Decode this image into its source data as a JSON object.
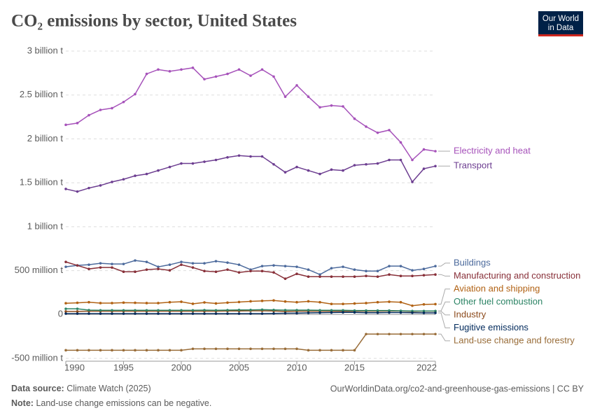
{
  "chart_data": {
    "type": "line",
    "title": "CO₂ emissions by sector, United States",
    "logo": [
      "Our World",
      "in Data"
    ],
    "source_label": "Data source:",
    "source": "Climate Watch (2025)",
    "url": "OurWorldinData.org/co2-and-greenhouse-gas-emissions | CC BY",
    "note_label": "Note:",
    "note": "Land-use change emissions can be negative.",
    "x": [
      1990,
      1991,
      1992,
      1993,
      1994,
      1995,
      1996,
      1997,
      1998,
      1999,
      2000,
      2001,
      2002,
      2003,
      2004,
      2005,
      2006,
      2007,
      2008,
      2009,
      2010,
      2011,
      2012,
      2013,
      2014,
      2015,
      2016,
      2017,
      2018,
      2019,
      2020,
      2021,
      2022
    ],
    "xlim": [
      1990,
      2022
    ],
    "xticks": [
      1990,
      1995,
      2000,
      2005,
      2010,
      2015,
      2022
    ],
    "ylim": [
      -500000000,
      3000000000
    ],
    "yticks": [
      {
        "value": -500000000,
        "label": "-500 million t"
      },
      {
        "value": 0,
        "label": "0"
      },
      {
        "value": 500000000,
        "label": "500 million t"
      },
      {
        "value": 1000000000,
        "label": "1 billion t"
      },
      {
        "value": 1500000000,
        "label": "1.5 billion t"
      },
      {
        "value": 2000000000,
        "label": "2 billion t"
      },
      {
        "value": 2500000000,
        "label": "2.5 billion t"
      },
      {
        "value": 3000000000,
        "label": "3 billion t"
      }
    ],
    "grid": true,
    "series": [
      {
        "name": "Electricity and heat",
        "color": "#a652ba",
        "values": [
          2160000000.0,
          2180000000.0,
          2270000000.0,
          2330000000.0,
          2350000000.0,
          2420000000.0,
          2510000000.0,
          2740000000.0,
          2790000000.0,
          2770000000.0,
          2790000000.0,
          2810000000.0,
          2680000000.0,
          2710000000.0,
          2740000000.0,
          2790000000.0,
          2720000000.0,
          2790000000.0,
          2710000000.0,
          2480000000.0,
          2610000000.0,
          2480000000.0,
          2360000000.0,
          2380000000.0,
          2370000000.0,
          2230000000.0,
          2140000000.0,
          2070000000.0,
          2100000000.0,
          1960000000.0,
          1760000000.0,
          1880000000.0,
          1860000000.0
        ]
      },
      {
        "name": "Transport",
        "color": "#6d3e91",
        "values": [
          1430000000.0,
          1400000000.0,
          1440000000.0,
          1470000000.0,
          1510000000.0,
          1540000000.0,
          1580000000.0,
          1600000000.0,
          1640000000.0,
          1680000000.0,
          1720000000.0,
          1720000000.0,
          1740000000.0,
          1760000000.0,
          1790000000.0,
          1810000000.0,
          1800000000.0,
          1800000000.0,
          1710000000.0,
          1620000000.0,
          1680000000.0,
          1640000000.0,
          1600000000.0,
          1650000000.0,
          1640000000.0,
          1700000000.0,
          1710000000.0,
          1720000000.0,
          1760000000.0,
          1760000000.0,
          1510000000.0,
          1660000000.0,
          1690000000.0
        ]
      },
      {
        "name": "Buildings",
        "color": "#4c6a9c",
        "values": [
          543000000.0,
          559000000.0,
          567000000.0,
          583000000.0,
          575000000.0,
          575000000.0,
          615000000.0,
          599000000.0,
          543000000.0,
          567000000.0,
          599000000.0,
          583000000.0,
          583000000.0,
          607000000.0,
          591000000.0,
          567000000.0,
          511000000.0,
          551000000.0,
          559000000.0,
          551000000.0,
          543000000.0,
          511000000.0,
          455000000.0,
          527000000.0,
          543000000.0,
          511000000.0,
          495000000.0,
          495000000.0,
          551000000.0,
          551000000.0,
          503000000.0,
          519000000.0,
          551000000.0
        ]
      },
      {
        "name": "Manufacturing and construction",
        "color": "#883039",
        "values": [
          599000000.0,
          559000000.0,
          519000000.0,
          535000000.0,
          535000000.0,
          487000000.0,
          487000000.0,
          511000000.0,
          519000000.0,
          503000000.0,
          567000000.0,
          535000000.0,
          495000000.0,
          487000000.0,
          511000000.0,
          479000000.0,
          495000000.0,
          495000000.0,
          479000000.0,
          407000000.0,
          463000000.0,
          431000000.0,
          431000000.0,
          431000000.0,
          431000000.0,
          431000000.0,
          439000000.0,
          431000000.0,
          455000000.0,
          439000000.0,
          439000000.0,
          447000000.0,
          455000000.0
        ]
      },
      {
        "name": "Aviation and shipping",
        "color": "#b16214",
        "values": [
          128000000.0,
          133000000.0,
          140000000.0,
          130000000.0,
          130000000.0,
          135000000.0,
          133000000.0,
          130000000.0,
          130000000.0,
          140000000.0,
          145000000.0,
          122000000.0,
          137000000.0,
          126000000.0,
          135000000.0,
          142000000.0,
          150000000.0,
          155000000.0,
          160000000.0,
          148000000.0,
          140000000.0,
          150000000.0,
          140000000.0,
          120000000.0,
          120000000.0,
          125000000.0,
          130000000.0,
          140000000.0,
          145000000.0,
          140000000.0,
          100000000.0,
          115000000.0,
          118000000.0
        ]
      },
      {
        "name": "Industry",
        "color": "#8c4a1c",
        "values": [
          35000000.0,
          35000000.0,
          38000000.0,
          38000000.0,
          38000000.0,
          38000000.0,
          38000000.0,
          38000000.0,
          38000000.0,
          38000000.0,
          38000000.0,
          38000000.0,
          38000000.0,
          38000000.0,
          40000000.0,
          40000000.0,
          42000000.0,
          42000000.0,
          40000000.0,
          35000000.0,
          38000000.0,
          38000000.0,
          38000000.0,
          38000000.0,
          38000000.0,
          38000000.0,
          38000000.0,
          38000000.0,
          40000000.0,
          40000000.0,
          35000000.0,
          38000000.0,
          38000000.0
        ]
      },
      {
        "name": "Other fuel combustion",
        "color": "#2c8465",
        "values": [
          65000000.0,
          65000000.0,
          50000000.0,
          48000000.0,
          48000000.0,
          48000000.0,
          48000000.0,
          48000000.0,
          48000000.0,
          48000000.0,
          48000000.0,
          48000000.0,
          50000000.0,
          48000000.0,
          50000000.0,
          52000000.0,
          52000000.0,
          55000000.0,
          52000000.0,
          50000000.0,
          50000000.0,
          50000000.0,
          48000000.0,
          48000000.0,
          48000000.0,
          45000000.0,
          45000000.0,
          45000000.0,
          45000000.0,
          42000000.0,
          40000000.0,
          40000000.0,
          40000000.0
        ]
      },
      {
        "name": "Fugitive emissions",
        "color": "#00295b",
        "values": [
          10000000.0,
          10000000.0,
          10000000.0,
          10000000.0,
          10000000.0,
          10000000.0,
          10000000.0,
          10000000.0,
          10000000.0,
          10000000.0,
          10000000.0,
          10000000.0,
          10000000.0,
          10000000.0,
          10000000.0,
          10000000.0,
          10000000.0,
          10000000.0,
          12000000.0,
          14000000.0,
          15000000.0,
          18000000.0,
          20000000.0,
          22000000.0,
          24000000.0,
          24000000.0,
          20000000.0,
          20000000.0,
          22000000.0,
          22000000.0,
          20000000.0,
          18000000.0,
          18000000.0
        ]
      },
      {
        "name": "Land-use change and forestry",
        "color": "#996d39",
        "values": [
          -407000000.0,
          -407000000.0,
          -407000000.0,
          -407000000.0,
          -407000000.0,
          -407000000.0,
          -407000000.0,
          -407000000.0,
          -407000000.0,
          -407000000.0,
          -407000000.0,
          -391000000.0,
          -391000000.0,
          -391000000.0,
          -391000000.0,
          -391000000.0,
          -391000000.0,
          -391000000.0,
          -391000000.0,
          -391000000.0,
          -391000000.0,
          -407000000.0,
          -407000000.0,
          -407000000.0,
          -407000000.0,
          -407000000.0,
          -223000000.0,
          -223000000.0,
          -223000000.0,
          -223000000.0,
          -223000000.0,
          -223000000.0,
          -223000000.0
        ]
      }
    ]
  }
}
